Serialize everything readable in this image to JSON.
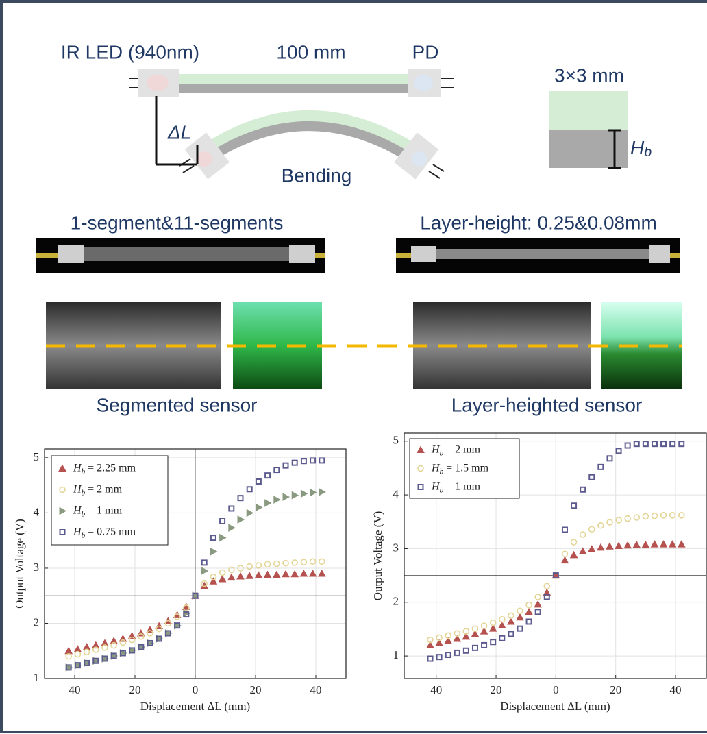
{
  "diagram": {
    "led": "IR LED (940nm)",
    "length": "100 mm",
    "pd": "PD",
    "section": "3×3 mm",
    "delta": "ΔL",
    "bending": "Bending",
    "hb": "Hb"
  },
  "photos": {
    "left_title": "1-segment&11-segments",
    "right_title": "Layer-height: 0.25&0.08mm",
    "left_caption": "Segmented sensor",
    "right_caption": "Layer-heighted sensor"
  },
  "chart_data": [
    {
      "type": "scatter",
      "xlabel": "Displacement ΔL (mm)",
      "ylabel": "Output Voltage (V)",
      "xlim": [
        -50,
        50
      ],
      "ylim": [
        1,
        5.16
      ],
      "xticks": [
        {
          "value": -40,
          "label": "40"
        },
        {
          "value": -20,
          "label": "20"
        },
        0,
        20,
        40
      ],
      "yticks": [
        1,
        2,
        3,
        4,
        5
      ],
      "grid": true,
      "hlines": [
        2.5
      ],
      "vlines": [
        0
      ],
      "x": [
        -42,
        -39,
        -36,
        -33,
        -30,
        -27,
        -24,
        -21,
        -18,
        -15,
        -12,
        -9,
        -6,
        -3,
        0,
        3,
        6,
        9,
        12,
        15,
        18,
        21,
        24,
        27,
        30,
        33,
        36,
        39,
        42
      ],
      "series": [
        {
          "name": "Hb = 2.25 mm",
          "color": "#b5514f",
          "marker": "triangle-up",
          "values": [
            1.5,
            1.53,
            1.57,
            1.6,
            1.64,
            1.68,
            1.72,
            1.77,
            1.82,
            1.88,
            1.95,
            2.04,
            2.15,
            2.3,
            2.5,
            2.68,
            2.76,
            2.8,
            2.83,
            2.85,
            2.86,
            2.87,
            2.88,
            2.88,
            2.89,
            2.89,
            2.9,
            2.9,
            2.9
          ]
        },
        {
          "name": "Hb = 2 mm",
          "color": "#e3d596",
          "marker": "circle",
          "values": [
            1.4,
            1.44,
            1.48,
            1.52,
            1.56,
            1.6,
            1.65,
            1.7,
            1.76,
            1.82,
            1.9,
            2.0,
            2.12,
            2.28,
            2.5,
            2.72,
            2.84,
            2.92,
            2.97,
            3.0,
            3.03,
            3.05,
            3.07,
            3.08,
            3.09,
            3.1,
            3.11,
            3.12,
            3.12
          ]
        },
        {
          "name": "Hb = 1 mm",
          "color": "#8a9a80",
          "marker": "triangle-right",
          "values": [
            1.2,
            1.24,
            1.28,
            1.32,
            1.36,
            1.41,
            1.46,
            1.51,
            1.57,
            1.64,
            1.72,
            1.82,
            1.96,
            2.18,
            2.5,
            2.95,
            3.3,
            3.55,
            3.73,
            3.88,
            4.0,
            4.1,
            4.18,
            4.24,
            4.29,
            4.32,
            4.35,
            4.37,
            4.38
          ]
        },
        {
          "name": "Hb = 0.75 mm",
          "color": "#5b5a8f",
          "marker": "square",
          "values": [
            1.2,
            1.24,
            1.28,
            1.32,
            1.36,
            1.41,
            1.46,
            1.51,
            1.57,
            1.64,
            1.72,
            1.82,
            1.96,
            2.16,
            2.5,
            3.1,
            3.55,
            3.85,
            4.08,
            4.27,
            4.43,
            4.57,
            4.68,
            4.78,
            4.86,
            4.91,
            4.94,
            4.95,
            4.95
          ]
        }
      ]
    },
    {
      "type": "scatter",
      "xlabel": "Displacement ΔL (mm)",
      "ylabel": "Output Voltage (V)",
      "xlim": [
        -50.7,
        50.3
      ],
      "ylim": [
        0.58,
        5.15
      ],
      "xticks": [
        {
          "value": -40,
          "label": "40"
        },
        {
          "value": -20,
          "label": "20"
        },
        0,
        20,
        40
      ],
      "yticks": [
        1,
        2,
        3,
        4,
        5
      ],
      "grid": true,
      "hlines": [
        2.5
      ],
      "vlines": [
        0
      ],
      "x": [
        -42,
        -39,
        -36,
        -33,
        -30,
        -27,
        -24,
        -21,
        -18,
        -15,
        -12,
        -9,
        -6,
        -3,
        0,
        3,
        6,
        9,
        12,
        15,
        18,
        21,
        24,
        27,
        30,
        33,
        36,
        39,
        42
      ],
      "series": [
        {
          "name": "Hb = 2 mm",
          "color": "#b5514f",
          "marker": "triangle-up",
          "values": [
            1.2,
            1.24,
            1.28,
            1.32,
            1.36,
            1.41,
            1.46,
            1.51,
            1.57,
            1.64,
            1.72,
            1.82,
            1.96,
            2.18,
            2.5,
            2.78,
            2.88,
            2.95,
            2.99,
            3.02,
            3.04,
            3.05,
            3.06,
            3.07,
            3.07,
            3.08,
            3.08,
            3.08,
            3.08
          ]
        },
        {
          "name": "Hb = 1.5 mm",
          "color": "#e3d596",
          "marker": "circle",
          "values": [
            1.3,
            1.34,
            1.38,
            1.42,
            1.46,
            1.51,
            1.56,
            1.62,
            1.68,
            1.75,
            1.84,
            1.95,
            2.1,
            2.3,
            2.5,
            2.9,
            3.12,
            3.26,
            3.36,
            3.43,
            3.49,
            3.53,
            3.56,
            3.58,
            3.6,
            3.61,
            3.62,
            3.62,
            3.62
          ]
        },
        {
          "name": "Hb = 1 mm",
          "color": "#5b5a8f",
          "marker": "square",
          "values": [
            0.95,
            0.98,
            1.02,
            1.06,
            1.1,
            1.15,
            1.2,
            1.26,
            1.33,
            1.41,
            1.51,
            1.64,
            1.82,
            2.1,
            2.5,
            3.35,
            3.8,
            4.1,
            4.33,
            4.52,
            4.68,
            4.82,
            4.92,
            4.95,
            4.95,
            4.95,
            4.95,
            4.95,
            4.95
          ]
        }
      ]
    }
  ]
}
